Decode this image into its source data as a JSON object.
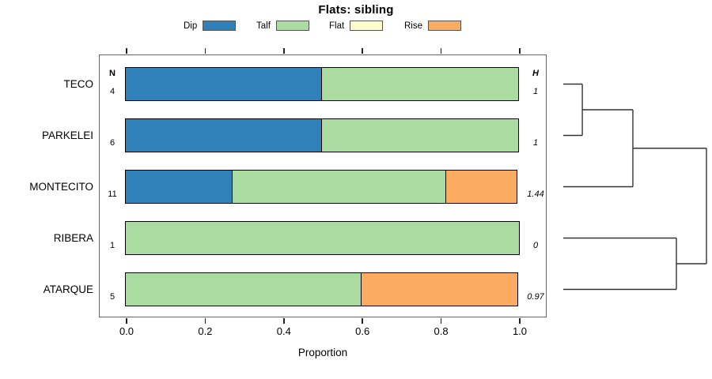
{
  "title": "Flats: sibling",
  "legend": {
    "items": [
      {
        "label": "Dip",
        "color": "#3081BA"
      },
      {
        "label": "Talf",
        "color": "#AADBA1"
      },
      {
        "label": "Flat",
        "color": "#FFFFCC"
      },
      {
        "label": "Rise",
        "color": "#FBAC62"
      }
    ]
  },
  "columns": {
    "n_header": "N",
    "h_header": "H"
  },
  "axis": {
    "label": "Proportion",
    "ticks": [
      "0.0",
      "0.2",
      "0.4",
      "0.6",
      "0.8",
      "1.0"
    ],
    "min": 0,
    "max": 1
  },
  "chart_data": {
    "type": "bar",
    "orientation": "horizontal-stacked",
    "title": "Flats: sibling",
    "xlabel": "Proportion",
    "xlim": [
      0,
      1
    ],
    "categories": [
      "TECO",
      "PARKELEI",
      "MONTECITO",
      "RIBERA",
      "ATARQUE"
    ],
    "n_values": [
      "4",
      "6",
      "11",
      "1",
      "5"
    ],
    "h_values": [
      "1",
      "1",
      "1.44",
      "0",
      "0.97"
    ],
    "series": [
      {
        "name": "Dip",
        "color": "#3081BA",
        "values": [
          0.5,
          0.5,
          0.273,
          0,
          0
        ]
      },
      {
        "name": "Talf",
        "color": "#AADBA1",
        "values": [
          0.5,
          0.5,
          0.545,
          1.0,
          0.6
        ]
      },
      {
        "name": "Flat",
        "color": "#FFFFCC",
        "values": [
          0,
          0,
          0,
          0,
          0
        ]
      },
      {
        "name": "Rise",
        "color": "#FBAC62",
        "values": [
          0,
          0,
          0.182,
          0,
          0.4
        ]
      }
    ],
    "dendrogram": {
      "structure": "(((TECO,PARKELEI),MONTECITO),(RIBERA,ATARQUE))",
      "tree": {
        "height": 1.0,
        "children": [
          {
            "height": 0.486,
            "children": [
              {
                "height": 0.133,
                "children": [
                  {
                    "leaf": "TECO"
                  },
                  {
                    "leaf": "PARKELEI"
                  }
                ]
              },
              {
                "leaf": "MONTECITO"
              }
            ]
          },
          {
            "height": 0.79,
            "children": [
              {
                "leaf": "RIBERA"
              },
              {
                "leaf": "ATARQUE"
              }
            ]
          }
        ]
      }
    }
  }
}
